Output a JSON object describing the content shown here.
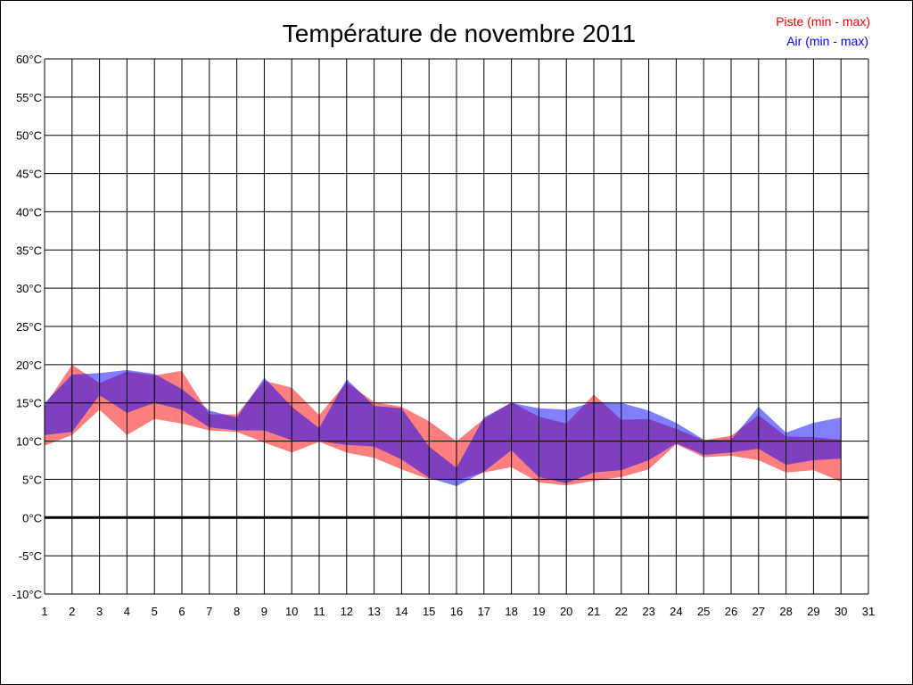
{
  "chart_data": {
    "type": "area",
    "title": "Température de novembre 2011",
    "xlabel": "",
    "ylabel": "",
    "ylim": [
      -10,
      60
    ],
    "xlim": [
      1,
      31
    ],
    "grid": true,
    "legend_position": "top-right",
    "x_ticks": [
      "1",
      "2",
      "3",
      "4",
      "5",
      "6",
      "7",
      "8",
      "9",
      "10",
      "11",
      "12",
      "13",
      "14",
      "15",
      "16",
      "17",
      "18",
      "19",
      "20",
      "21",
      "22",
      "23",
      "24",
      "25",
      "26",
      "27",
      "28",
      "29",
      "30",
      "31"
    ],
    "y_ticks": [
      "-10°C",
      "-5°C",
      "0°C",
      "5°C",
      "10°C",
      "15°C",
      "20°C",
      "25°C",
      "30°C",
      "35°C",
      "40°C",
      "45°C",
      "50°C",
      "55°C",
      "60°C"
    ],
    "x": [
      1,
      2,
      3,
      4,
      5,
      6,
      7,
      8,
      9,
      10,
      11,
      12,
      13,
      14,
      15,
      16,
      17,
      18,
      19,
      20,
      21,
      22,
      23,
      24,
      25,
      26,
      27,
      28,
      29,
      30
    ],
    "series": [
      {
        "name": "Piste (min - max)",
        "color": "#ff0000",
        "max": [
          14.6,
          20,
          17.6,
          19.1,
          18.6,
          19.2,
          13.5,
          13.5,
          17.9,
          17,
          13.4,
          17.7,
          15.1,
          14.5,
          12.6,
          10,
          12.9,
          15.1,
          13.2,
          12.3,
          16.1,
          12.8,
          12.9,
          11.6,
          10.1,
          10.7,
          13.4,
          10.6,
          10.5,
          10.2
        ],
        "min": [
          9.4,
          10.8,
          14.1,
          10.8,
          12.9,
          12.3,
          11.4,
          11.2,
          9.8,
          8.5,
          9.9,
          8.5,
          7.8,
          6.3,
          5.0,
          4.9,
          5.9,
          6.6,
          4.6,
          4.2,
          4.8,
          5.3,
          6.3,
          9.6,
          7.9,
          8.1,
          7.5,
          5.9,
          6.2,
          4.7
        ]
      },
      {
        "name": "Air (min - max)",
        "color": "#0000ff",
        "max": [
          15,
          18.7,
          18.9,
          19.3,
          18.8,
          16.8,
          14,
          13.1,
          18.3,
          14.5,
          11.7,
          18.1,
          14.6,
          14.3,
          9.3,
          6.5,
          13.1,
          15,
          14.3,
          14.1,
          15.1,
          15,
          14,
          12.4,
          10.2,
          10.2,
          14.5,
          11.1,
          12.4,
          13.1
        ],
        "min": [
          10.8,
          11.2,
          16,
          13.7,
          15,
          14.1,
          11.8,
          11.4,
          11.4,
          10.1,
          10,
          9.5,
          9.3,
          7.6,
          5.2,
          4.1,
          6,
          8.8,
          5.3,
          4.5,
          5.9,
          6.2,
          7.5,
          9.7,
          8.2,
          8.5,
          9,
          6.9,
          7.5,
          7.7
        ]
      }
    ]
  }
}
